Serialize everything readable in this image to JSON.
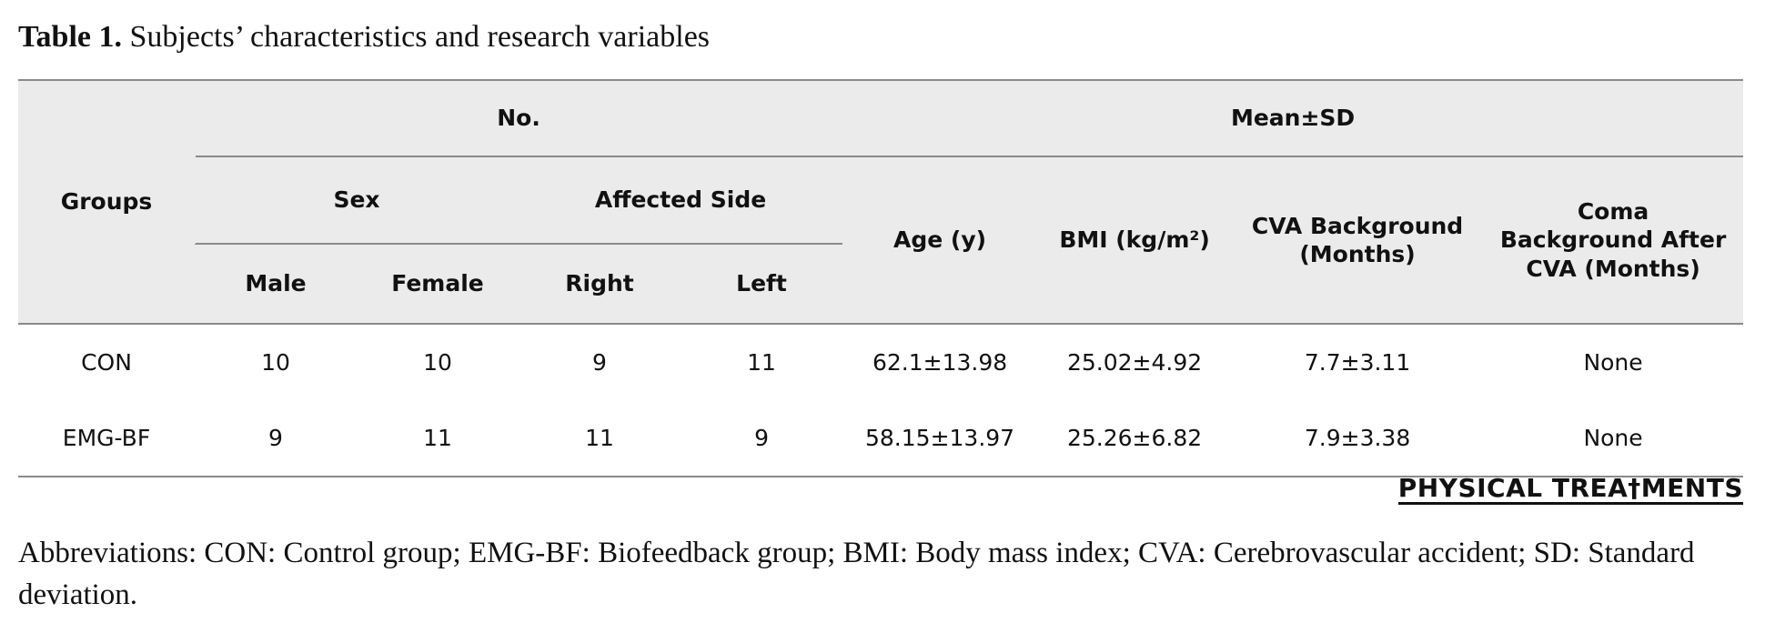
{
  "caption": {
    "label": "Table 1.",
    "text": " Subjects’ characteristics and research variables"
  },
  "table": {
    "header": {
      "groups": "Groups",
      "no": "No.",
      "mean_sd": "Mean±SD",
      "sex": "Sex",
      "affected_side": "Affected Side",
      "age": "Age (y)",
      "bmi": "BMI (kg/m²)",
      "cva_background": "CVA Background (Months)",
      "coma_background": "Coma Background After CVA (Months)",
      "male": "Male",
      "female": "Female",
      "right": "Right",
      "left": "Left"
    },
    "rows": [
      {
        "group": "CON",
        "male": "10",
        "female": "10",
        "right": "9",
        "left": "11",
        "age": "62.1±13.98",
        "bmi": "25.02±4.92",
        "cva": "7.7±3.11",
        "coma": "None"
      },
      {
        "group": "EMG-BF",
        "male": "9",
        "female": "11",
        "right": "11",
        "left": "9",
        "age": "58.15±13.97",
        "bmi": "25.26±6.82",
        "cva": "7.9±3.38",
        "coma": "None"
      }
    ]
  },
  "logo": "PHYSICAL TREA†MENTS",
  "abbreviations": "Abbreviations: CON: Control group; EMG-BF: Biofeedback group; BMI: Body mass index; CVA: Cerebrovascular accident; SD: Standard deviation."
}
